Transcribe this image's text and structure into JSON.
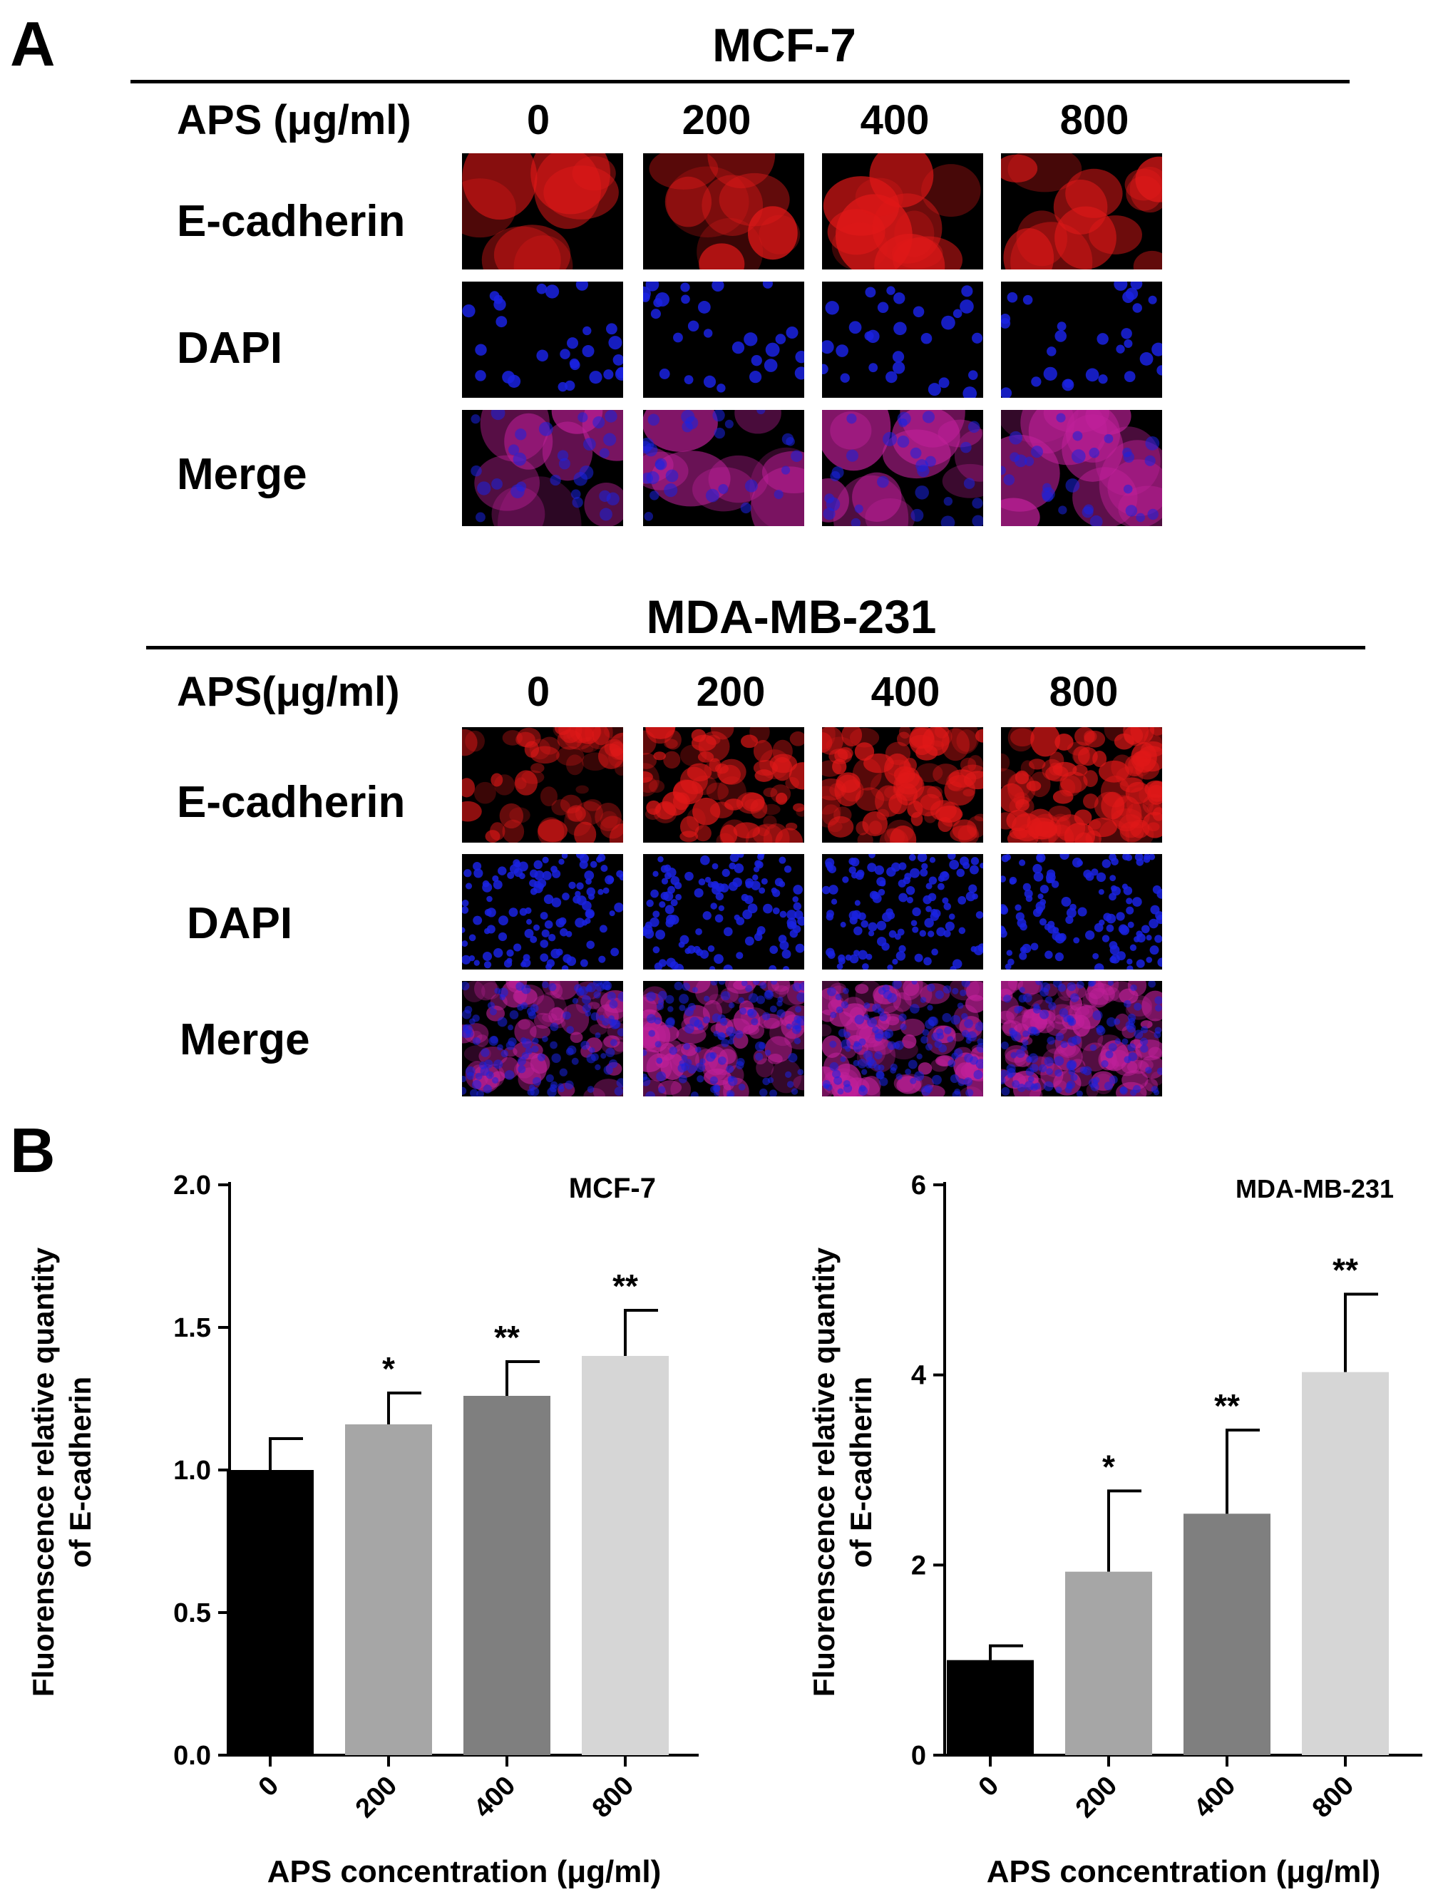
{
  "panelA": {
    "letter": "A",
    "blocks": [
      {
        "cell_line": "MCF-7",
        "header_label": "APS (μg/ml)",
        "doses": [
          "0",
          "200",
          "400",
          "800"
        ],
        "rows": [
          "E-cadherin",
          "DAPI",
          "Merge"
        ]
      },
      {
        "cell_line": "MDA-MB-231",
        "header_label": "APS(μg/ml)",
        "doses": [
          "0",
          "200",
          "400",
          "800"
        ],
        "rows": [
          "E-cadherin",
          "DAPI",
          "Merge"
        ]
      }
    ],
    "stain_colors": {
      "E-cadherin": "#e01818",
      "DAPI": "#1a22e0",
      "Merge": "#c0209a"
    }
  },
  "panelB": {
    "letter": "B"
  },
  "chart_data": [
    {
      "type": "bar",
      "title": "MCF-7",
      "categories": [
        "0",
        "200",
        "400",
        "800"
      ],
      "values": [
        1.0,
        1.16,
        1.26,
        1.4
      ],
      "error_upper": [
        0.11,
        0.11,
        0.12,
        0.16
      ],
      "significance": [
        "",
        "*",
        "**",
        "**"
      ],
      "bar_colors": [
        "#000000",
        "#a6a6a6",
        "#7f7f7f",
        "#d6d6d6"
      ],
      "ylim": [
        0,
        2.0
      ],
      "yticks": [
        "0.0",
        "0.5",
        "1.0",
        "1.5",
        "2.0"
      ],
      "ylabel_lines": [
        "Fluorenscence relative quantity",
        "of E-cadherin"
      ],
      "xlabel": "APS concentration (μg/ml)"
    },
    {
      "type": "bar",
      "title": "MDA-MB-231",
      "categories": [
        "0",
        "200",
        "400",
        "800"
      ],
      "values": [
        1.0,
        1.93,
        2.54,
        4.03
      ],
      "error_upper": [
        0.15,
        0.85,
        0.88,
        0.82
      ],
      "significance": [
        "",
        "*",
        "**",
        "**"
      ],
      "bar_colors": [
        "#000000",
        "#a6a6a6",
        "#7f7f7f",
        "#d6d6d6"
      ],
      "ylim": [
        0,
        6
      ],
      "yticks": [
        "0",
        "2",
        "4",
        "6"
      ],
      "ylabel_lines": [
        "Fluorenscence relative quantity",
        "of E-cadherin"
      ],
      "xlabel": "APS concentration (μg/ml)"
    }
  ]
}
